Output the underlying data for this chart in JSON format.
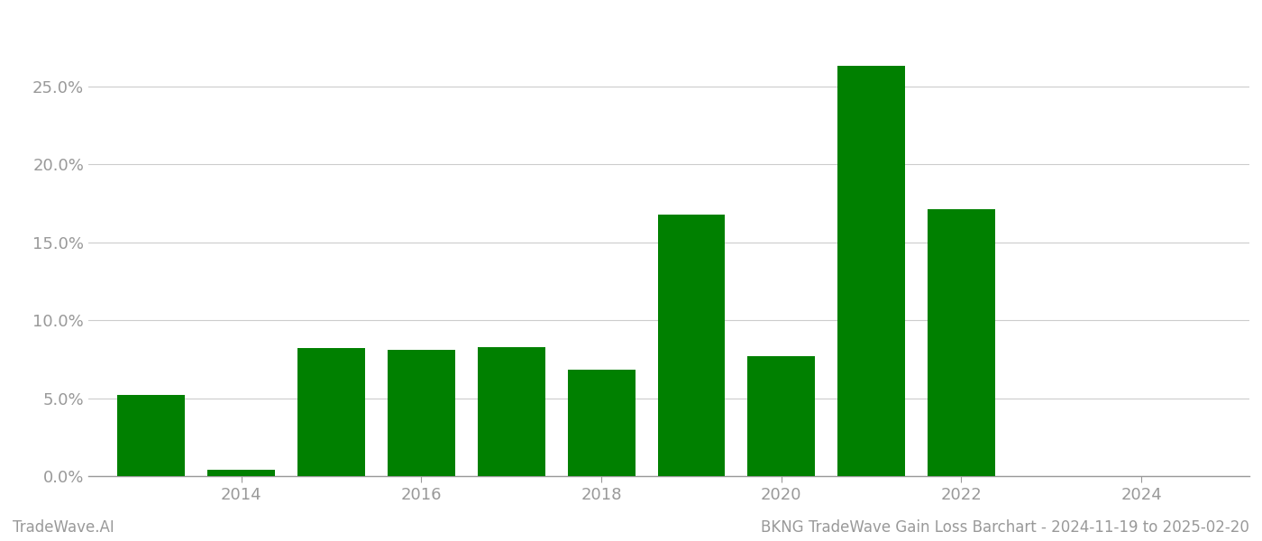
{
  "years": [
    2013,
    2014,
    2015,
    2016,
    2017,
    2018,
    2019,
    2020,
    2021,
    2022,
    2023
  ],
  "values": [
    0.052,
    0.004,
    0.082,
    0.081,
    0.083,
    0.068,
    0.168,
    0.077,
    0.263,
    0.171,
    0.0
  ],
  "bar_color": "#008000",
  "background_color": "#ffffff",
  "grid_color": "#cccccc",
  "axis_color": "#999999",
  "tick_label_color": "#999999",
  "footer_left": "TradeWave.AI",
  "footer_right": "BKNG TradeWave Gain Loss Barchart - 2024-11-19 to 2025-02-20",
  "ytick_values": [
    0.0,
    0.05,
    0.1,
    0.15,
    0.2,
    0.25
  ],
  "xlim": [
    2012.3,
    2025.2
  ],
  "ylim": [
    0.0,
    0.295
  ],
  "xtick_positions": [
    2014,
    2016,
    2018,
    2020,
    2022,
    2024
  ],
  "bar_width": 0.75,
  "figsize": [
    14.0,
    6.0
  ],
  "dpi": 100,
  "tick_fontsize": 13,
  "footer_fontsize": 12
}
